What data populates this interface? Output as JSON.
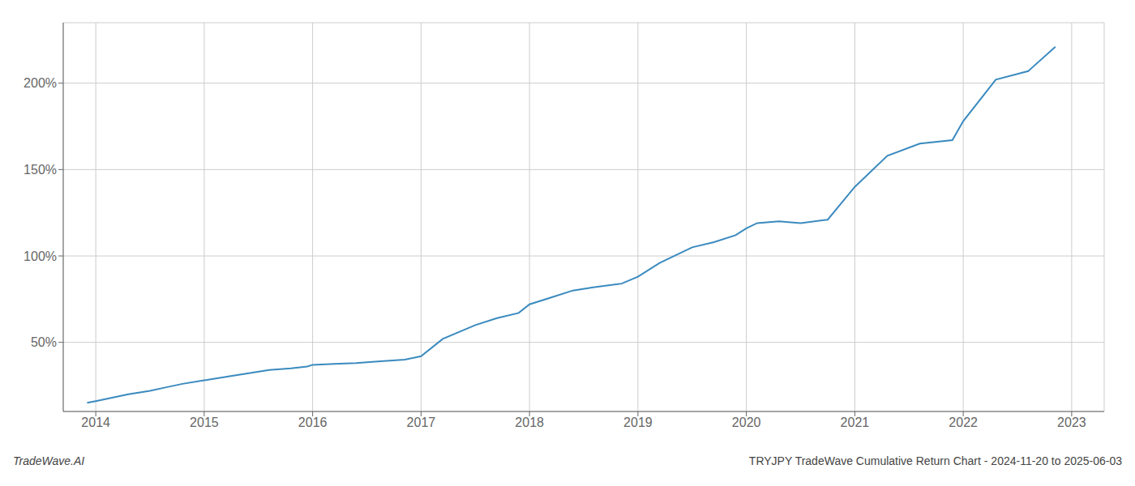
{
  "chart_data": {
    "type": "line",
    "title": "TRYJPY TradeWave Cumulative Return Chart - 2024-11-20 to 2025-06-03",
    "annotations": [
      "TradeWave.AI"
    ],
    "color": "#3a8abf",
    "x": [
      2013.92,
      2014.0,
      2014.15,
      2014.3,
      2014.5,
      2014.65,
      2014.8,
      2015.0,
      2015.2,
      2015.4,
      2015.6,
      2015.8,
      2015.95,
      2016.0,
      2016.2,
      2016.4,
      2016.6,
      2016.85,
      2017.0,
      2017.2,
      2017.5,
      2017.7,
      2017.9,
      2018.0,
      2018.2,
      2018.4,
      2018.6,
      2018.85,
      2019.0,
      2019.2,
      2019.5,
      2019.7,
      2019.9,
      2020.0,
      2020.1,
      2020.3,
      2020.5,
      2020.75,
      2021.0,
      2021.3,
      2021.6,
      2021.9,
      2022.0,
      2022.3,
      2022.6,
      2022.85
    ],
    "values": [
      15,
      16,
      18,
      20,
      22,
      24,
      26,
      28,
      30,
      32,
      34,
      35,
      36,
      37,
      37.5,
      38,
      39,
      40,
      42,
      52,
      60,
      64,
      67,
      72,
      76,
      80,
      82,
      84,
      88,
      96,
      105,
      108,
      112,
      116,
      119,
      120,
      119,
      121,
      140,
      158,
      165,
      167,
      178,
      202,
      207,
      221
    ],
    "xlim": [
      2013.7,
      2023.3
    ],
    "xticks": [
      2014,
      2015,
      2016,
      2017,
      2018,
      2019,
      2020,
      2021,
      2022,
      2023
    ],
    "ylim": [
      10,
      235
    ],
    "yticks": [
      {
        "value": 50,
        "label": "50%"
      },
      {
        "value": 100,
        "label": "100%"
      },
      {
        "value": 150,
        "label": "150%"
      },
      {
        "value": 200,
        "label": "200%"
      }
    ],
    "grid": true
  }
}
